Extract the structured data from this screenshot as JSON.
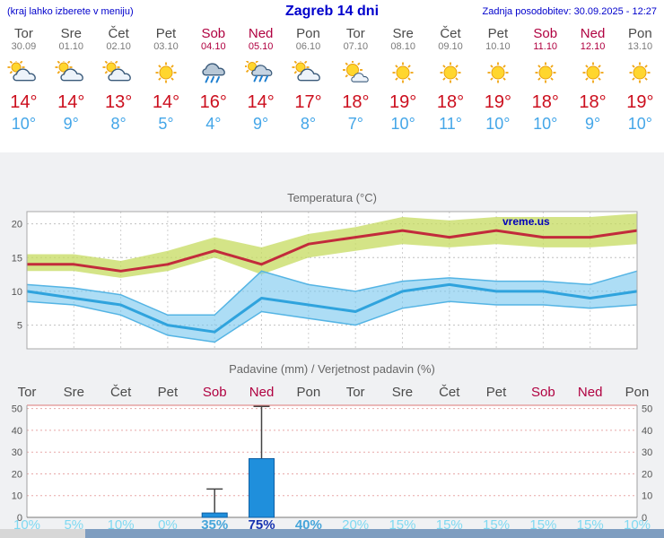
{
  "header": {
    "hint": "(kraj lahko izberete v meniju)",
    "title": "Zagreb 14 dni",
    "updated": "Zadnja posodobitev: 30.09.2025 - 12:27"
  },
  "watermark": "vreme.us",
  "colors": {
    "header_text": "#0000cc",
    "weekday": "#4a4a4a",
    "weekend": "#b00040",
    "high_temp": "#cc0f1e",
    "low_temp": "#44a6e8",
    "prob_light": "#7fd9f2",
    "prob_medium": "#46a5da",
    "prob_strong": "#1733b0"
  },
  "forecast": {
    "days": [
      {
        "name": "Tor",
        "date": "30.09",
        "weekend": false,
        "icon": "cloud-sun",
        "high": "14°",
        "low": "10°"
      },
      {
        "name": "Sre",
        "date": "01.10",
        "weekend": false,
        "icon": "cloud-sun",
        "high": "14°",
        "low": "9°"
      },
      {
        "name": "Čet",
        "date": "02.10",
        "weekend": false,
        "icon": "cloud-sun",
        "high": "13°",
        "low": "8°"
      },
      {
        "name": "Pet",
        "date": "03.10",
        "weekend": false,
        "icon": "sun",
        "high": "14°",
        "low": "5°"
      },
      {
        "name": "Sob",
        "date": "04.10",
        "weekend": true,
        "icon": "rain",
        "high": "16°",
        "low": "4°"
      },
      {
        "name": "Ned",
        "date": "05.10",
        "weekend": true,
        "icon": "rain-sun",
        "high": "14°",
        "low": "9°"
      },
      {
        "name": "Pon",
        "date": "06.10",
        "weekend": false,
        "icon": "cloud-sun",
        "high": "17°",
        "low": "8°"
      },
      {
        "name": "Tor",
        "date": "07.10",
        "weekend": false,
        "icon": "sun-cloud",
        "high": "18°",
        "low": "7°"
      },
      {
        "name": "Sre",
        "date": "08.10",
        "weekend": false,
        "icon": "sun",
        "high": "19°",
        "low": "10°"
      },
      {
        "name": "Čet",
        "date": "09.10",
        "weekend": false,
        "icon": "sun",
        "high": "18°",
        "low": "11°"
      },
      {
        "name": "Pet",
        "date": "10.10",
        "weekend": false,
        "icon": "sun",
        "high": "19°",
        "low": "10°"
      },
      {
        "name": "Sob",
        "date": "11.10",
        "weekend": true,
        "icon": "sun",
        "high": "18°",
        "low": "10°"
      },
      {
        "name": "Ned",
        "date": "12.10",
        "weekend": true,
        "icon": "sun",
        "high": "18°",
        "low": "9°"
      },
      {
        "name": "Pon",
        "date": "13.10",
        "weekend": false,
        "icon": "sun",
        "high": "19°",
        "low": "10°"
      }
    ]
  },
  "chart_data": [
    {
      "type": "line",
      "title": "Temperatura (°C)",
      "x_labels": [
        "Tor",
        "Sre",
        "Čet",
        "Pet",
        "Sob",
        "Ned",
        "Pon",
        "Tor",
        "Sre",
        "Čet",
        "Pet",
        "Sob",
        "Ned",
        "Pon"
      ],
      "yticks": [
        5,
        10,
        15,
        20
      ],
      "ylim": [
        1.5,
        21.8
      ],
      "grid": true,
      "legend": "none",
      "series": [
        {
          "name": "max-temp",
          "color": "#c22b3b",
          "width": 3,
          "values": [
            14,
            14,
            13,
            14,
            16,
            14,
            17,
            18,
            19,
            18,
            19,
            18,
            18,
            19
          ]
        },
        {
          "name": "min-temp",
          "color": "#2fa3dd",
          "width": 3,
          "values": [
            10,
            9,
            8,
            5,
            4,
            9,
            8,
            7,
            10,
            11,
            10,
            10,
            9,
            10
          ]
        }
      ],
      "bands": [
        {
          "name": "max-range",
          "color": "rgba(197,219,95,0.75)",
          "upper": [
            15.5,
            15.5,
            14.5,
            16,
            18,
            16.5,
            18.5,
            19.5,
            21,
            20.5,
            21,
            21,
            21,
            21.5
          ],
          "lower": [
            13,
            13,
            12,
            13,
            15,
            12.5,
            15,
            16,
            17,
            16.5,
            17,
            16.5,
            16.5,
            17
          ]
        },
        {
          "name": "min-range",
          "color": "rgba(118,198,238,0.6)",
          "edge": "#54b4e4",
          "upper": [
            11,
            10.5,
            9.5,
            6.5,
            6.5,
            13,
            11,
            10,
            11.5,
            12,
            11.5,
            11.5,
            11,
            13
          ],
          "lower": [
            8.5,
            8,
            6.5,
            3.5,
            2.5,
            7,
            6,
            5,
            7.5,
            8.5,
            8,
            8,
            7.5,
            8
          ]
        }
      ]
    },
    {
      "type": "bar",
      "title": "Padavine (mm) / Verjetnost padavin (%)",
      "categories": [
        "Tor",
        "Sre",
        "Čet",
        "Pet",
        "Sob",
        "Ned",
        "Pon",
        "Tor",
        "Sre",
        "Čet",
        "Pet",
        "Sob",
        "Ned",
        "Pon"
      ],
      "weekend_flags": [
        false,
        false,
        false,
        false,
        true,
        true,
        false,
        false,
        false,
        false,
        false,
        true,
        true,
        false
      ],
      "values": [
        0,
        0,
        0,
        0,
        2,
        27,
        0,
        0,
        0,
        0,
        0,
        0,
        0,
        0
      ],
      "whiskers": [
        0,
        0,
        0,
        0,
        13,
        51,
        0,
        0,
        0,
        0,
        0,
        0,
        0,
        0
      ],
      "bar_color": "#1f8fdc",
      "yticks": [
        0,
        10,
        20,
        30,
        40,
        50
      ],
      "ylim": [
        0,
        51.5
      ],
      "probabilities": [
        {
          "label": "10%",
          "level": "light"
        },
        {
          "label": "5%",
          "level": "light"
        },
        {
          "label": "10%",
          "level": "light"
        },
        {
          "label": "0%",
          "level": "light"
        },
        {
          "label": "35%",
          "level": "medium"
        },
        {
          "label": "75%",
          "level": "strong"
        },
        {
          "label": "40%",
          "level": "medium"
        },
        {
          "label": "20%",
          "level": "light"
        },
        {
          "label": "15%",
          "level": "light"
        },
        {
          "label": "15%",
          "level": "light"
        },
        {
          "label": "15%",
          "level": "light"
        },
        {
          "label": "15%",
          "level": "light"
        },
        {
          "label": "15%",
          "level": "light"
        },
        {
          "label": "10%",
          "level": "light"
        }
      ]
    }
  ],
  "scrollbar": {
    "thumb_start": 95
  }
}
